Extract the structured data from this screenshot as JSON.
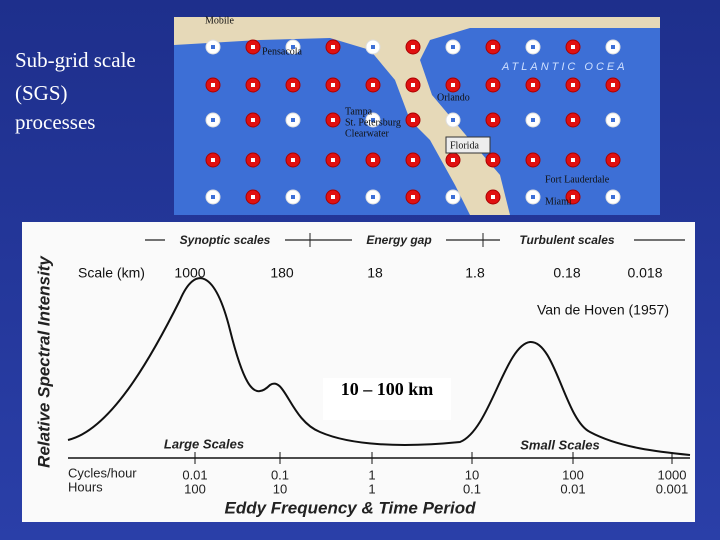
{
  "slide": {
    "title_lines": [
      "Sub-grid scale",
      "(SGS)",
      "processes"
    ],
    "map": {
      "labels": [
        "Mobile",
        "Pensacola",
        "Tampa",
        "St. Petersburg",
        "Clearwater",
        "Orlando",
        "Florida",
        "ATLANTIC OCEA",
        "Fort Lauderdale",
        "Miami"
      ]
    },
    "spectrum": {
      "bands": [
        "Synoptic scales",
        "Energy gap",
        "Turbulent scales"
      ],
      "scale_label": "Scale (km)",
      "scales": [
        "1000",
        "180",
        "18",
        "1.8",
        "0.18",
        "0.018"
      ],
      "source": "Van de Hoven (1957)",
      "highlight": "10 – 100 km",
      "y_label": "Relative Spectral Intensity",
      "peak_labels": [
        "Large Scales",
        "Small Scales"
      ],
      "row_labels": [
        "Cycles/hour",
        "Hours"
      ],
      "cycles": [
        "0.01",
        "0.1",
        "1",
        "10",
        "100",
        "1000"
      ],
      "hours": [
        "100",
        "10",
        "1",
        "0.1",
        "0.01",
        "0.001"
      ],
      "x_label": "Eddy Frequency & Time Period"
    }
  }
}
